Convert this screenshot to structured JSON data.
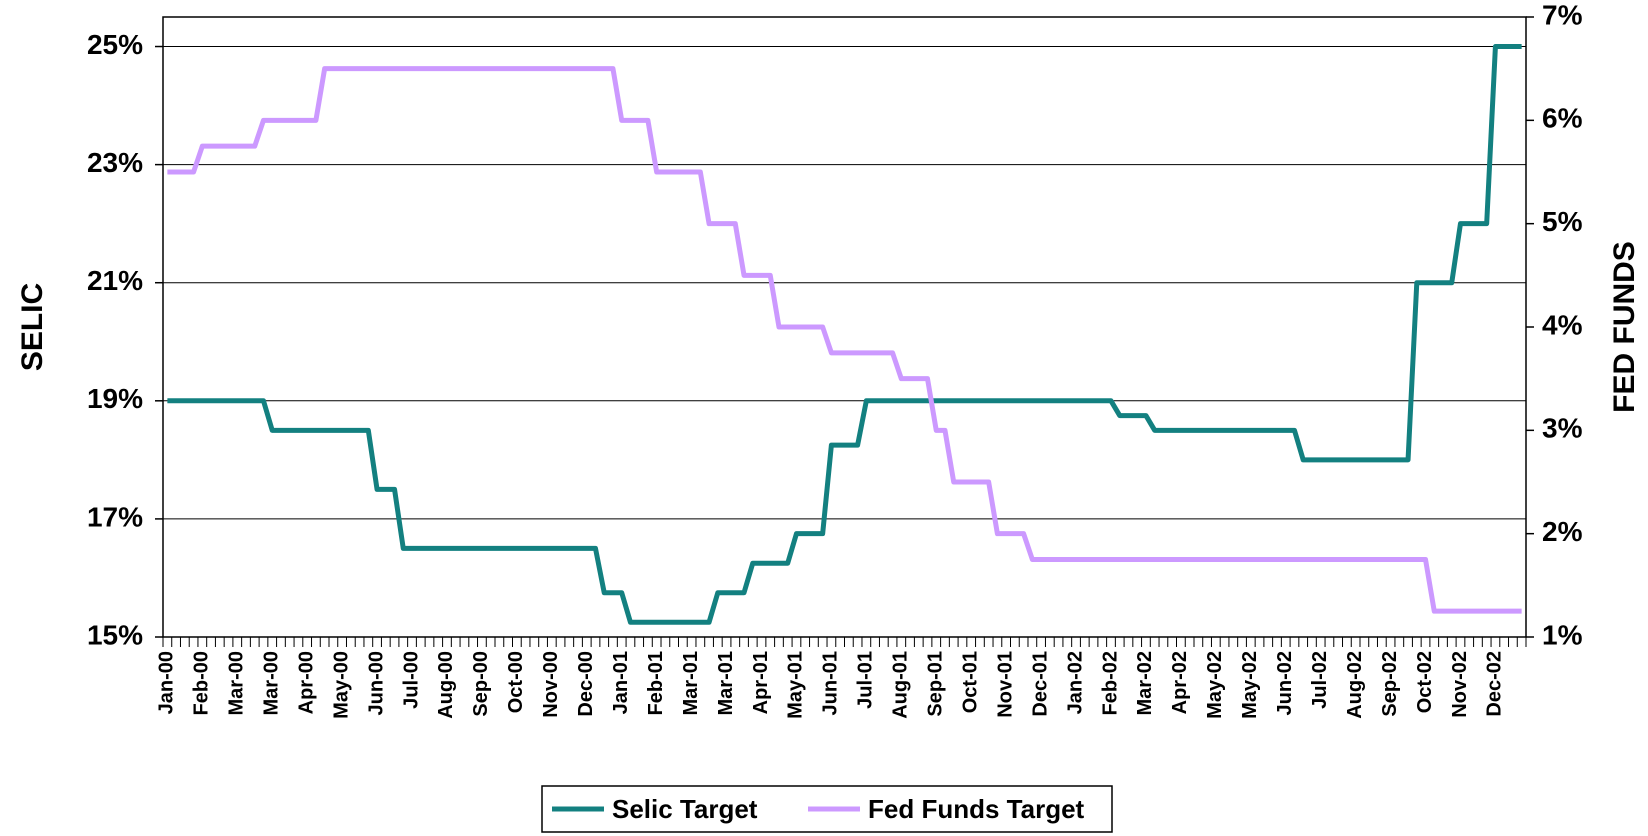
{
  "chart_data": {
    "type": "line",
    "y_label": "SELIC",
    "y2_label": "FED FUNDS",
    "categories": [
      "Jan-00",
      null,
      null,
      null,
      "Feb-00",
      null,
      null,
      null,
      "Mar-00",
      null,
      null,
      null,
      "Mar-00",
      null,
      null,
      null,
      "Apr-00",
      null,
      null,
      null,
      "May-00",
      null,
      null,
      null,
      "Jun-00",
      null,
      null,
      null,
      "Jul-00",
      null,
      null,
      null,
      "Aug-00",
      null,
      null,
      null,
      "Sep-00",
      null,
      null,
      null,
      "Oct-00",
      null,
      null,
      null,
      "Nov-00",
      null,
      null,
      null,
      "Dec-00",
      null,
      null,
      null,
      "Jan-01",
      null,
      null,
      null,
      "Feb-01",
      null,
      null,
      null,
      "Mar-01",
      null,
      null,
      null,
      "Mar-01",
      null,
      null,
      null,
      "Apr-01",
      null,
      null,
      null,
      "May-01",
      null,
      null,
      null,
      "Jun-01",
      null,
      null,
      null,
      "Jul-01",
      null,
      null,
      null,
      "Aug-01",
      null,
      null,
      null,
      "Sep-01",
      null,
      null,
      null,
      "Oct-01",
      null,
      null,
      null,
      "Nov-01",
      null,
      null,
      null,
      "Dec-01",
      null,
      null,
      null,
      "Jan-02",
      null,
      null,
      null,
      "Feb-02",
      null,
      null,
      null,
      "Mar-02",
      null,
      null,
      null,
      "Apr-02",
      null,
      null,
      null,
      "May-02",
      null,
      null,
      null,
      "May-02",
      null,
      null,
      null,
      "Jun-02",
      null,
      null,
      null,
      "Jul-02",
      null,
      null,
      null,
      "Aug-02",
      null,
      null,
      null,
      "Sep-02",
      null,
      null,
      null,
      "Oct-02",
      null,
      null,
      null,
      "Nov-02",
      null,
      null,
      null,
      "Dec-02",
      null,
      null,
      null
    ],
    "series": [
      {
        "name": "Selic Target",
        "color": "#138080",
        "values": [
          19,
          19,
          19,
          19,
          19,
          19,
          19,
          19,
          19,
          19,
          19,
          19,
          18.5,
          18.5,
          18.5,
          18.5,
          18.5,
          18.5,
          18.5,
          18.5,
          18.5,
          18.5,
          18.5,
          18.5,
          17.5,
          17.5,
          17.5,
          16.5,
          16.5,
          16.5,
          16.5,
          16.5,
          16.5,
          16.5,
          16.5,
          16.5,
          16.5,
          16.5,
          16.5,
          16.5,
          16.5,
          16.5,
          16.5,
          16.5,
          16.5,
          16.5,
          16.5,
          16.5,
          16.5,
          16.5,
          15.75,
          15.75,
          15.75,
          15.25,
          15.25,
          15.25,
          15.25,
          15.25,
          15.25,
          15.25,
          15.25,
          15.25,
          15.25,
          15.75,
          15.75,
          15.75,
          15.75,
          16.25,
          16.25,
          16.25,
          16.25,
          16.25,
          16.75,
          16.75,
          16.75,
          16.75,
          18.25,
          18.25,
          18.25,
          18.25,
          19,
          19,
          19,
          19,
          19,
          19,
          19,
          19,
          19,
          19,
          19,
          19,
          19,
          19,
          19,
          19,
          19,
          19,
          19,
          19,
          19,
          19,
          19,
          19,
          19,
          19,
          19,
          19,
          19,
          18.75,
          18.75,
          18.75,
          18.75,
          18.5,
          18.5,
          18.5,
          18.5,
          18.5,
          18.5,
          18.5,
          18.5,
          18.5,
          18.5,
          18.5,
          18.5,
          18.5,
          18.5,
          18.5,
          18.5,
          18.5,
          18,
          18,
          18,
          18,
          18,
          18,
          18,
          18,
          18,
          18,
          18,
          18,
          18,
          21,
          21,
          21,
          21,
          21,
          22,
          22,
          22,
          22,
          25,
          25,
          25,
          25
        ]
      },
      {
        "name": "Fed Funds Target",
        "color": "#cc99ff",
        "axis": "y2",
        "values": [
          5.5,
          5.5,
          5.5,
          5.5,
          5.75,
          5.75,
          5.75,
          5.75,
          5.75,
          5.75,
          5.75,
          6,
          6,
          6,
          6,
          6,
          6,
          6,
          6.5,
          6.5,
          6.5,
          6.5,
          6.5,
          6.5,
          6.5,
          6.5,
          6.5,
          6.5,
          6.5,
          6.5,
          6.5,
          6.5,
          6.5,
          6.5,
          6.5,
          6.5,
          6.5,
          6.5,
          6.5,
          6.5,
          6.5,
          6.5,
          6.5,
          6.5,
          6.5,
          6.5,
          6.5,
          6.5,
          6.5,
          6.5,
          6.5,
          6.5,
          6,
          6,
          6,
          6,
          5.5,
          5.5,
          5.5,
          5.5,
          5.5,
          5.5,
          5,
          5,
          5,
          5,
          4.5,
          4.5,
          4.5,
          4.5,
          4,
          4,
          4,
          4,
          4,
          4,
          3.75,
          3.75,
          3.75,
          3.75,
          3.75,
          3.75,
          3.75,
          3.75,
          3.5,
          3.5,
          3.5,
          3.5,
          3,
          3,
          2.5,
          2.5,
          2.5,
          2.5,
          2.5,
          2,
          2,
          2,
          2,
          1.75,
          1.75,
          1.75,
          1.75,
          1.75,
          1.75,
          1.75,
          1.75,
          1.75,
          1.75,
          1.75,
          1.75,
          1.75,
          1.75,
          1.75,
          1.75,
          1.75,
          1.75,
          1.75,
          1.75,
          1.75,
          1.75,
          1.75,
          1.75,
          1.75,
          1.75,
          1.75,
          1.75,
          1.75,
          1.75,
          1.75,
          1.75,
          1.75,
          1.75,
          1.75,
          1.75,
          1.75,
          1.75,
          1.75,
          1.75,
          1.75,
          1.75,
          1.75,
          1.75,
          1.75,
          1.75,
          1.25,
          1.25,
          1.25,
          1.25,
          1.25,
          1.25,
          1.25,
          1.25,
          1.25,
          1.25,
          1.25
        ]
      }
    ],
    "ylim": [
      15,
      25.5
    ],
    "yticks": [
      {
        "value": 15,
        "label": "15%"
      },
      {
        "value": 17,
        "label": "17%"
      },
      {
        "value": 19,
        "label": "19%"
      },
      {
        "value": 21,
        "label": "21%"
      },
      {
        "value": 23,
        "label": "23%"
      },
      {
        "value": 25,
        "label": "25%"
      }
    ],
    "y2lim": [
      1,
      7
    ],
    "y2ticks": [
      {
        "value": 1,
        "label": "1%"
      },
      {
        "value": 2,
        "label": "2%"
      },
      {
        "value": 3,
        "label": "3%"
      },
      {
        "value": 4,
        "label": "4%"
      },
      {
        "value": 5,
        "label": "5%"
      },
      {
        "value": 6,
        "label": "6%"
      },
      {
        "value": 7,
        "label": "7%"
      }
    ],
    "grid": true,
    "legend": "bottom"
  }
}
